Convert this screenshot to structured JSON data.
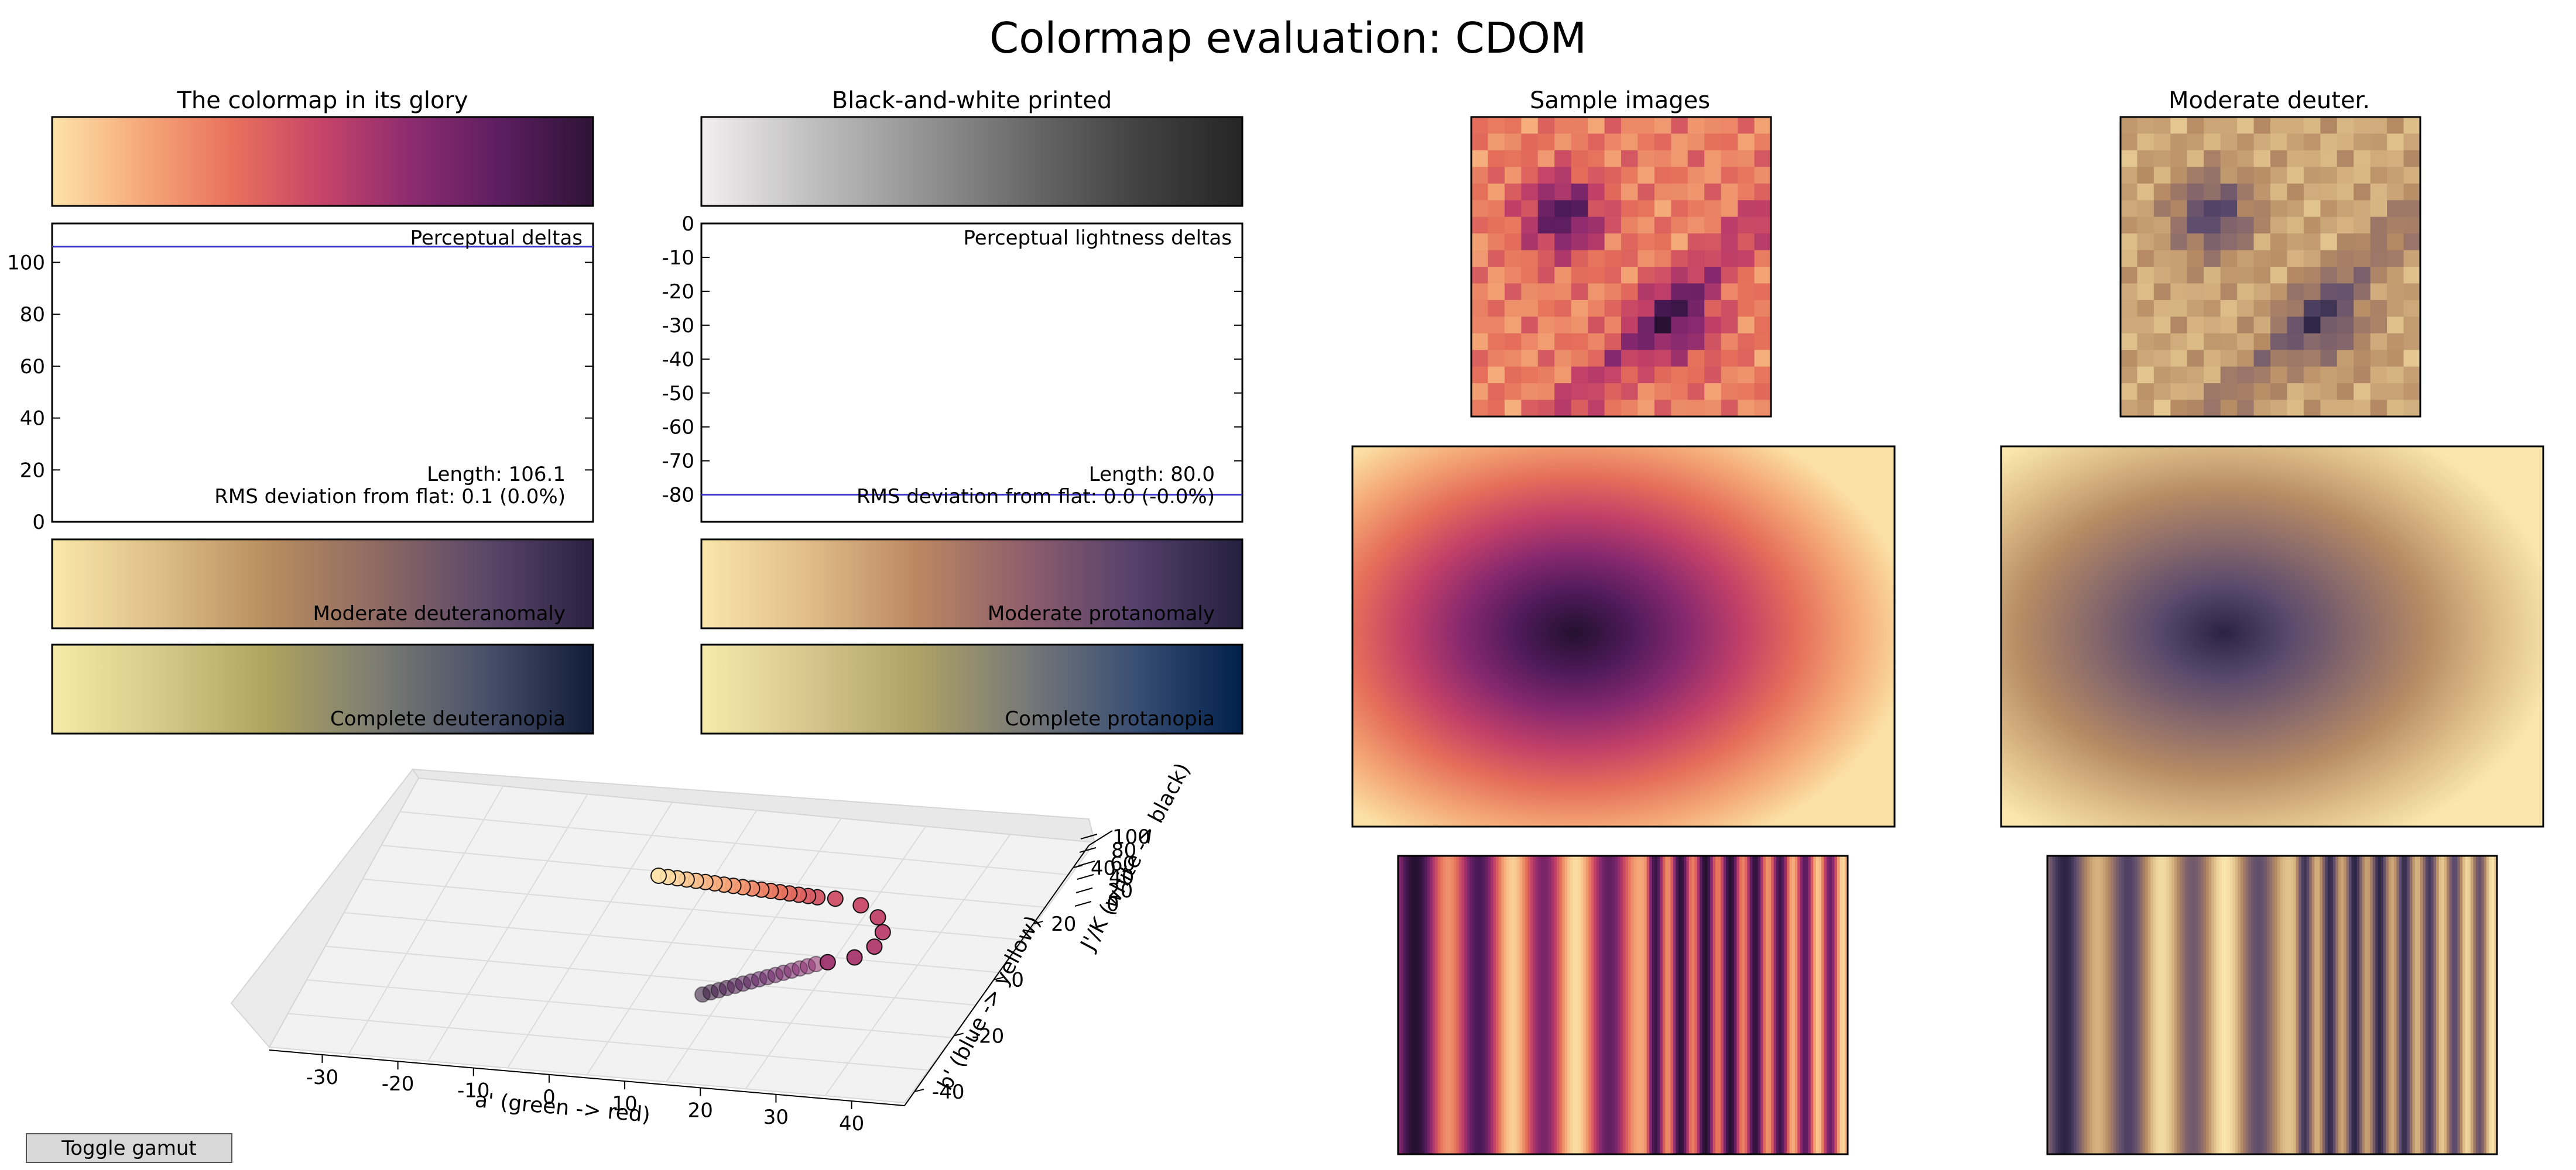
{
  "page": {
    "title": "Colormap evaluation: CDOM"
  },
  "panels": {
    "glory_title": "The colormap in its glory",
    "bw_title": "Black-and-white printed",
    "samples_title": "Sample images",
    "deuter_title": "Moderate deuter."
  },
  "colormap": {
    "glory": [
      "#fde3a9",
      "#f6a87a",
      "#e8715d",
      "#c64469",
      "#8b2b70",
      "#5b1e5f",
      "#2e1336"
    ],
    "grayscale": [
      "#f1efef",
      "#c1c0c0",
      "#959595",
      "#6a6a6a",
      "#434343",
      "#252525"
    ],
    "moderate_deuteranomaly": [
      "#fbe8ab",
      "#dcbe86",
      "#b88d5f",
      "#8f6a63",
      "#5b4869",
      "#2b2042"
    ],
    "moderate_protanomaly": [
      "#fae6ab",
      "#e0bc88",
      "#bb8762",
      "#8e5e6c",
      "#55406c",
      "#24203f"
    ],
    "complete_deuteranopia": [
      "#f6eba8",
      "#d6c98a",
      "#aea35f",
      "#7d7d73",
      "#49516a",
      "#101c38"
    ],
    "complete_protanopia": [
      "#f7eaaa",
      "#d7c68d",
      "#aea266",
      "#787978",
      "#3a4f74",
      "#00204b"
    ]
  },
  "strip_labels": {
    "moderate_deuteranomaly": "Moderate deuteranomaly",
    "moderate_protanomaly": "Moderate protanomaly",
    "complete_deuteranopia": "Complete deuteranopia",
    "complete_protanopia": "Complete protanopia"
  },
  "sample_palettes": {
    "original": [
      "#fbe0a5",
      "#f4a877",
      "#e56f5a",
      "#c24068",
      "#86286f",
      "#4d1a58",
      "#24102f"
    ],
    "deuter": [
      "#fbe7ae",
      "#dcbb86",
      "#b58a64",
      "#8a6a6b",
      "#5a4a6c",
      "#2b2342"
    ]
  },
  "chart_data": [
    {
      "type": "line",
      "title": "Perceptual deltas",
      "ylim": [
        0,
        115
      ],
      "yticks": [
        0,
        20,
        40,
        60,
        80,
        100
      ],
      "series": [
        {
          "values": [
            106.1,
            106.1
          ]
        }
      ],
      "annotations": [
        "Length: 106.1",
        "RMS deviation from flat: 0.1 (0.0%)"
      ]
    },
    {
      "type": "line",
      "title": "Perceptual lightness deltas",
      "ylim": [
        -88,
        0
      ],
      "yticks": [
        0,
        -10,
        -20,
        -30,
        -40,
        -50,
        -60,
        -70,
        -80
      ],
      "series": [
        {
          "values": [
            -80.0,
            -80.0
          ]
        }
      ],
      "annotations": [
        "Length: 80.0",
        "RMS deviation from flat: 0.0 (-0.0%)"
      ]
    },
    {
      "type": "scatter",
      "xlabel": "a' (green -> red)",
      "ylabel": "b' (blue -> yellow)",
      "zlabel": "J'/K (white -> black)",
      "xticks": [
        -30,
        -20,
        -10,
        0,
        10,
        20,
        30,
        40
      ],
      "yticks": [
        -40,
        -20,
        0,
        20,
        40
      ],
      "zticks": [
        0,
        20,
        40,
        60,
        80,
        100
      ],
      "points": 40
    }
  ],
  "toggle_gamut": {
    "label": "Toggle gamut"
  }
}
